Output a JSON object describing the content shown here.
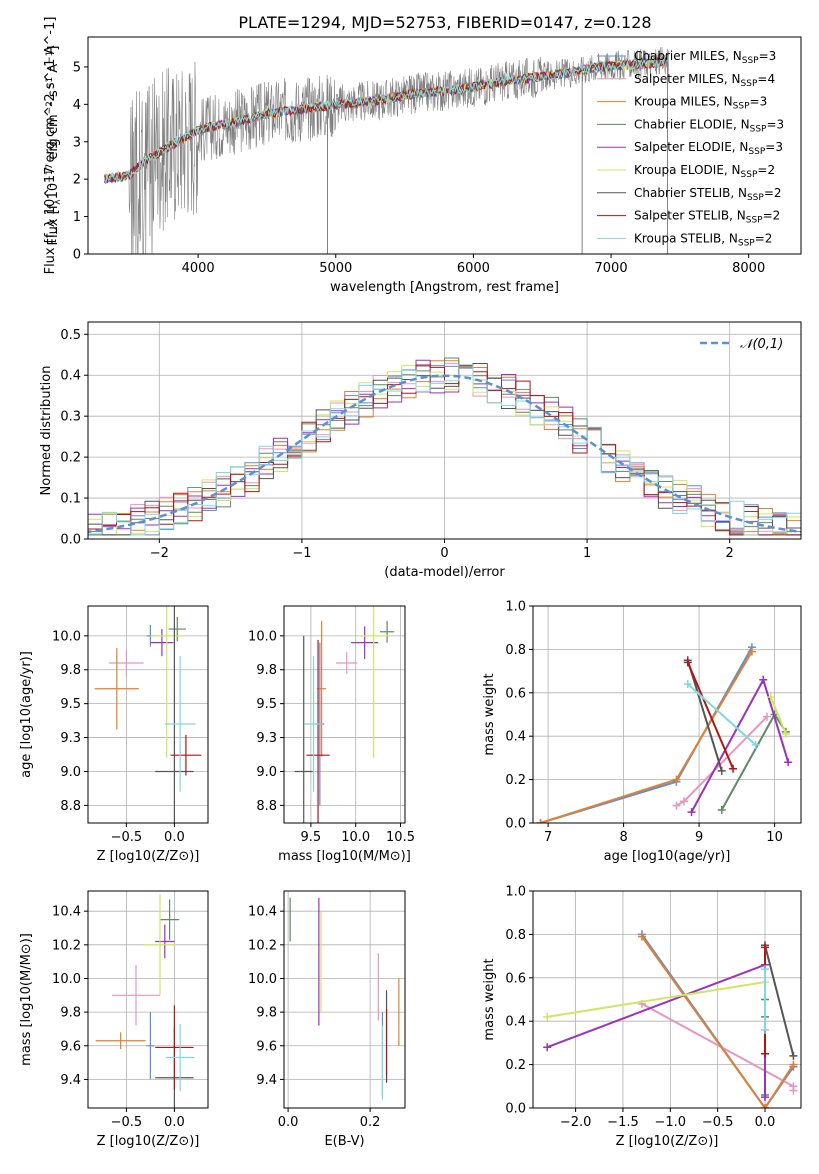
{
  "figure": {
    "title": "PLATE=1294, MJD=52753, FIBERID=0147, z=0.128"
  },
  "models": [
    {
      "name": "Chabrier MILES, N$_{SSP}$=3",
      "label": "Chabrier MILES, N",
      "sub": "SSP",
      "tail": "=3",
      "color": "#5b8fd6"
    },
    {
      "name": "Salpeter MILES, N$_{SSP}$=4",
      "label": "Salpeter MILES, N",
      "sub": "SSP",
      "tail": "=4",
      "color": "#e895c2"
    },
    {
      "name": "Kroupa MILES, N$_{SSP}$=3",
      "label": "Kroupa MILES, N",
      "sub": "SSP",
      "tail": "=3",
      "color": "#e08030"
    },
    {
      "name": "Chabrier ELODIE, N$_{SSP}$=3",
      "label": "Chabrier ELODIE, N",
      "sub": "SSP",
      "tail": "=3",
      "color": "#5e8a66"
    },
    {
      "name": "Salpeter ELODIE, N$_{SSP}$=3",
      "label": "Salpeter ELODIE, N",
      "sub": "SSP",
      "tail": "=3",
      "color": "#9933bb"
    },
    {
      "name": "Kroupa ELODIE, N$_{SSP}$=2",
      "label": "Kroupa ELODIE, N",
      "sub": "SSP",
      "tail": "=2",
      "color": "#cfe660"
    },
    {
      "name": "Chabrier STELIB, N$_{SSP}$=2",
      "label": "Chabrier STELIB, N",
      "sub": "SSP",
      "tail": "=2",
      "color": "#555555"
    },
    {
      "name": "Salpeter STELIB, N$_{SSP}$=2",
      "label": "Salpeter STELIB, N",
      "sub": "SSP",
      "tail": "=2",
      "color": "#b01515"
    },
    {
      "name": "Kroupa STELIB, N$_{SSP}$=2",
      "label": "Kroupa STELIB, N",
      "sub": "SSP",
      "tail": "=2",
      "color": "#80d8e0"
    }
  ],
  "chart_data": [
    {
      "id": "spectrum",
      "type": "line",
      "title": "PLATE=1294, MJD=52753, FIBERID=0147, z=0.128",
      "xlabel": "wavelength [Angstrom, rest frame]",
      "ylabel": "Flux [f_λ 10^-17 erg cm^-2 s^-1 A^-1]",
      "xlim": [
        3200,
        8380
      ],
      "ylim": [
        0,
        5.8
      ],
      "xticks": [
        4000,
        5000,
        6000,
        7000,
        8000
      ],
      "yticks": [
        0,
        1,
        2,
        3,
        4,
        5
      ],
      "legend": "top-right",
      "data_color": "#808080",
      "continuum": {
        "x": [
          3300,
          3500,
          3600,
          3800,
          3900,
          4000,
          4100,
          4300,
          4500,
          4800,
          5000,
          5300,
          5600,
          5900,
          6200,
          6500,
          6700,
          6900,
          7100,
          7300,
          7400
        ],
        "y": [
          2.0,
          2.1,
          2.45,
          2.9,
          3.1,
          3.3,
          3.4,
          3.55,
          3.75,
          3.9,
          4.0,
          4.1,
          4.3,
          4.4,
          4.6,
          4.75,
          4.85,
          5.0,
          5.05,
          5.1,
          5.15
        ]
      }
    },
    {
      "id": "residuals",
      "type": "line",
      "xlabel": "(data-model)/error",
      "ylabel": "Normed distribution",
      "xlim": [
        -2.5,
        2.5
      ],
      "ylim": [
        0,
        0.53
      ],
      "xticks": [
        -2,
        -1,
        0,
        1,
        2
      ],
      "yticks": [
        0.0,
        0.1,
        0.2,
        0.3,
        0.4,
        0.5
      ],
      "reference": {
        "name": "𝒩(0,1)",
        "mean": 0,
        "sigma": 1
      },
      "legend": "top-right"
    },
    {
      "id": "age_vs_Z",
      "type": "scatter",
      "xlabel": "Z [log10(Z/Z⊙)]",
      "ylabel": "age [log10(age/yr)]",
      "xlim": [
        -0.9,
        0.35
      ],
      "ylim": [
        8.62,
        10.22
      ],
      "xticks": [
        -0.5,
        0.0
      ],
      "yticks": [
        8.75,
        9.0,
        9.25,
        9.5,
        9.75,
        10.0
      ],
      "points": [
        {
          "model": 0,
          "x": -0.25,
          "y": 10.0,
          "xerr": 0.04,
          "yerr": 0.08
        },
        {
          "model": 1,
          "x": -0.5,
          "y": 9.8,
          "xerr": 0.18,
          "yerr": 0.1
        },
        {
          "model": 2,
          "x": -0.6,
          "y": 9.61,
          "xerr": 0.23,
          "yerr": 0.3
        },
        {
          "model": 3,
          "x": 0.03,
          "y": 10.05,
          "xerr": 0.09,
          "yerr": 0.09
        },
        {
          "model": 4,
          "x": -0.13,
          "y": 9.95,
          "xerr": 0.12,
          "yerr": 0.1
        },
        {
          "model": 5,
          "x": -0.08,
          "y": 10.0,
          "xerr": 0.17,
          "yerr": 0.9
        },
        {
          "model": 6,
          "x": 0.0,
          "y": 9.0,
          "xerr": 0.2,
          "yerr": 1.4
        },
        {
          "model": 7,
          "x": 0.12,
          "y": 9.12,
          "xerr": 0.16,
          "yerr": 0.15
        },
        {
          "model": 8,
          "x": 0.06,
          "y": 9.35,
          "xerr": 0.16,
          "yerr": 0.5
        }
      ]
    },
    {
      "id": "age_vs_mass",
      "type": "scatter",
      "xlabel": "mass [log10(M/M⊙)]",
      "ylabel": "",
      "xlim": [
        9.2,
        10.55
      ],
      "ylim": [
        8.62,
        10.22
      ],
      "xticks": [
        9.5,
        10.0,
        10.5
      ],
      "yticks": [
        8.75,
        9.0,
        9.25,
        9.5,
        9.75,
        10.0
      ],
      "points": [
        {
          "model": 0,
          "x": 9.6,
          "y": 9.35,
          "xerr": 0.05,
          "yerr": 0.6
        },
        {
          "model": 1,
          "x": 9.9,
          "y": 9.8,
          "xerr": 0.12,
          "yerr": 0.08
        },
        {
          "model": 2,
          "x": 9.62,
          "y": 9.61,
          "xerr": 0.05,
          "yerr": 0.5
        },
        {
          "model": 3,
          "x": 10.35,
          "y": 10.03,
          "xerr": 0.08,
          "yerr": 0.08
        },
        {
          "model": 4,
          "x": 10.1,
          "y": 9.95,
          "xerr": 0.15,
          "yerr": 0.12
        },
        {
          "model": 5,
          "x": 10.2,
          "y": 10.0,
          "xerr": 0.18,
          "yerr": 0.9
        },
        {
          "model": 6,
          "x": 9.42,
          "y": 9.0,
          "xerr": 0.1,
          "yerr": 1.0
        },
        {
          "model": 7,
          "x": 9.58,
          "y": 9.12,
          "xerr": 0.13,
          "yerr": 0.85
        },
        {
          "model": 8,
          "x": 9.53,
          "y": 9.35,
          "xerr": 0.1,
          "yerr": 0.5
        }
      ]
    },
    {
      "id": "weight_vs_age",
      "type": "line",
      "xlabel": "age [log10(age/yr)]",
      "ylabel": "mass weight",
      "xlim": [
        6.8,
        10.35
      ],
      "ylim": [
        0,
        1.0
      ],
      "xticks": [
        7,
        8,
        9,
        10
      ],
      "yticks": [
        0.0,
        0.2,
        0.4,
        0.6,
        0.8,
        1.0
      ],
      "series": [
        {
          "model": 0,
          "x": [
            6.9,
            8.7,
            9.7
          ],
          "y": [
            0.0,
            0.19,
            0.81
          ]
        },
        {
          "model": 1,
          "x": [
            8.7,
            8.8,
            9.9
          ],
          "y": [
            0.08,
            0.1,
            0.49
          ]
        },
        {
          "model": 2,
          "x": [
            6.9,
            8.7,
            9.7
          ],
          "y": [
            0.0,
            0.2,
            0.79
          ]
        },
        {
          "model": 3,
          "x": [
            9.3,
            10.0,
            10.15
          ],
          "y": [
            0.06,
            0.5,
            0.42
          ]
        },
        {
          "model": 4,
          "x": [
            8.9,
            9.85,
            10.18
          ],
          "y": [
            0.05,
            0.66,
            0.28
          ]
        },
        {
          "model": 5,
          "x": [
            9.95,
            10.15
          ],
          "y": [
            0.58,
            0.41
          ]
        },
        {
          "model": 6,
          "x": [
            8.85,
            9.3
          ],
          "y": [
            0.75,
            0.24
          ]
        },
        {
          "model": 7,
          "x": [
            8.85,
            9.45
          ],
          "y": [
            0.74,
            0.25
          ]
        },
        {
          "model": 8,
          "x": [
            8.85,
            9.75
          ],
          "y": [
            0.64,
            0.36
          ]
        }
      ]
    },
    {
      "id": "mass_vs_Z",
      "type": "scatter",
      "xlabel": "Z [log10(Z/Z⊙)]",
      "ylabel": "mass [log10(M/M⊙)]",
      "xlim": [
        -0.9,
        0.35
      ],
      "ylim": [
        9.23,
        10.52
      ],
      "xticks": [
        -0.5,
        0.0
      ],
      "yticks": [
        9.4,
        9.6,
        9.8,
        10.0,
        10.2,
        10.4
      ],
      "points": [
        {
          "model": 0,
          "x": -0.25,
          "y": 9.6,
          "xerr": 0.04,
          "yerr": 0.2
        },
        {
          "model": 1,
          "x": -0.4,
          "y": 9.9,
          "xerr": 0.25,
          "yerr": 0.18
        },
        {
          "model": 2,
          "x": -0.56,
          "y": 9.63,
          "xerr": 0.26,
          "yerr": 0.05
        },
        {
          "model": 3,
          "x": -0.05,
          "y": 10.35,
          "xerr": 0.1,
          "yerr": 0.12
        },
        {
          "model": 4,
          "x": -0.1,
          "y": 10.22,
          "xerr": 0.1,
          "yerr": 0.1
        },
        {
          "model": 5,
          "x": -0.15,
          "y": 10.2,
          "xerr": 0.17,
          "yerr": 0.3
        },
        {
          "model": 6,
          "x": 0.0,
          "y": 9.41,
          "xerr": 0.2,
          "yerr": 0.3
        },
        {
          "model": 7,
          "x": 0.0,
          "y": 9.59,
          "xerr": 0.2,
          "yerr": 0.25
        },
        {
          "model": 8,
          "x": 0.06,
          "y": 9.53,
          "xerr": 0.15,
          "yerr": 0.2
        }
      ]
    },
    {
      "id": "mass_vs_ebv",
      "type": "scatter",
      "xlabel": "E(B-V)",
      "ylabel": "",
      "xlim": [
        -0.01,
        0.285
      ],
      "ylim": [
        9.23,
        10.52
      ],
      "xticks": [
        0.0,
        0.2
      ],
      "yticks": [
        9.4,
        9.6,
        9.8,
        10.0,
        10.2,
        10.4
      ],
      "points": [
        {
          "model": 0,
          "x": 0.23,
          "y": 9.55,
          "xerr": 0,
          "yerr": 0.25
        },
        {
          "model": 1,
          "x": 0.22,
          "y": 9.95,
          "xerr": 0,
          "yerr": 0.2
        },
        {
          "model": 2,
          "x": 0.27,
          "y": 9.8,
          "xerr": 0,
          "yerr": 0.2
        },
        {
          "model": 3,
          "x": 0.005,
          "y": 10.35,
          "xerr": 0,
          "yerr": 0.13
        },
        {
          "model": 4,
          "x": 0.075,
          "y": 10.1,
          "xerr": 0,
          "yerr": 0.38
        },
        {
          "model": 5,
          "x": 0.08,
          "y": 10.1,
          "xerr": 0,
          "yerr": 0.3
        },
        {
          "model": 6,
          "x": 0.24,
          "y": 9.68,
          "xerr": 0,
          "yerr": 0.25
        },
        {
          "model": 7,
          "x": 0.24,
          "y": 9.6,
          "xerr": 0,
          "yerr": 0.22
        },
        {
          "model": 8,
          "x": 0.23,
          "y": 9.5,
          "xerr": 0,
          "yerr": 0.22
        }
      ]
    },
    {
      "id": "weight_vs_Z",
      "type": "line",
      "xlabel": "Z [log10(Z/Z⊙)]",
      "ylabel": "mass weight",
      "xlim": [
        -2.45,
        0.38
      ],
      "ylim": [
        0,
        1.0
      ],
      "xticks": [
        -2.0,
        -1.5,
        -1.0,
        -0.5,
        0.0
      ],
      "yticks": [
        0.0,
        0.2,
        0.4,
        0.6,
        0.8,
        1.0
      ],
      "series": [
        {
          "model": 0,
          "x": [
            -1.3,
            0.0,
            0.3
          ],
          "y": [
            0.8,
            0.0,
            0.19
          ]
        },
        {
          "model": 1,
          "x": [
            -1.3,
            0.3,
            0.3
          ],
          "y": [
            0.48,
            0.1,
            0.08
          ]
        },
        {
          "model": 2,
          "x": [
            -1.3,
            0.0,
            0.3
          ],
          "y": [
            0.79,
            0.0,
            0.2
          ]
        },
        {
          "model": 3,
          "x": [
            0.0,
            0.0,
            0.0
          ],
          "y": [
            0.06,
            0.5,
            0.42
          ]
        },
        {
          "model": 4,
          "x": [
            -2.3,
            0.0,
            0.0
          ],
          "y": [
            0.28,
            0.66,
            0.05
          ]
        },
        {
          "model": 5,
          "x": [
            -2.3,
            0.0
          ],
          "y": [
            0.42,
            0.58
          ]
        },
        {
          "model": 6,
          "x": [
            0.0,
            0.3
          ],
          "y": [
            0.75,
            0.24
          ]
        },
        {
          "model": 7,
          "x": [
            0.0,
            0.0
          ],
          "y": [
            0.74,
            0.25
          ]
        },
        {
          "model": 8,
          "x": [
            0.0,
            0.0
          ],
          "y": [
            0.64,
            0.36
          ]
        }
      ]
    }
  ]
}
